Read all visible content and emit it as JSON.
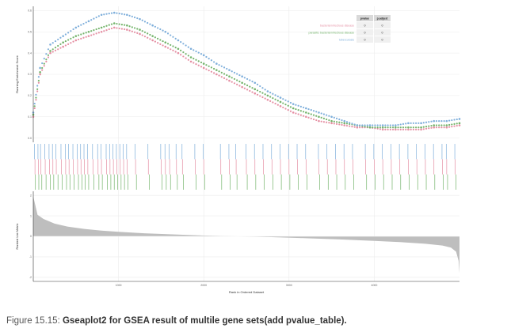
{
  "caption": {
    "prefix": "Figure 15.15: ",
    "title": "Gseaplot2 for GSEA result of multile gene sets(add pvalue_table)."
  },
  "colors": {
    "series": [
      "#E78AC3",
      "#66C2A5",
      "#8DA0CB"
    ],
    "es_series": [
      "#E58FA3",
      "#74B46B",
      "#7FAFDB"
    ],
    "rank_fill": "#BEBEBE",
    "grid": "#EBEBEB",
    "table_header": "#D9D9D9",
    "table_body": "#F0F0F0"
  },
  "chart_data": {
    "type": "scatter",
    "title": "",
    "panels": {
      "es": {
        "ylabel": "Running Enrichment Score",
        "ylim": [
          -0.02,
          0.62
        ],
        "yticks": [
          0.0,
          0.1,
          0.2,
          0.3,
          0.4,
          0.5,
          0.6
        ],
        "ytick_labels": [
          "0.0",
          "0.1",
          "0.2",
          "0.3",
          "0.4",
          "0.5",
          "0.6"
        ],
        "series": [
          {
            "name": "bacterial infectious disease",
            "x": [
              0,
              80,
              200,
              350,
              500,
              650,
              800,
              950,
              1100,
              1250,
              1400,
              1550,
              1700,
              1850,
              2000,
              2150,
              2300,
              2450,
              2600,
              2750,
              2900,
              3050,
              3200,
              3350,
              3500,
              3650,
              3800,
              3950,
              4100,
              4250,
              4400,
              4550,
              4700,
              4850,
              5000
            ],
            "y": [
              0.1,
              0.3,
              0.4,
              0.43,
              0.46,
              0.48,
              0.5,
              0.52,
              0.51,
              0.49,
              0.46,
              0.43,
              0.4,
              0.36,
              0.33,
              0.3,
              0.27,
              0.24,
              0.21,
              0.18,
              0.15,
              0.12,
              0.1,
              0.08,
              0.07,
              0.06,
              0.05,
              0.05,
              0.04,
              0.04,
              0.04,
              0.04,
              0.05,
              0.05,
              0.06
            ]
          },
          {
            "name": "parasitic bacterial infectious disease",
            "x": [
              0,
              80,
              200,
              350,
              500,
              650,
              800,
              950,
              1100,
              1250,
              1400,
              1550,
              1700,
              1850,
              2000,
              2150,
              2300,
              2450,
              2600,
              2750,
              2900,
              3050,
              3200,
              3350,
              3500,
              3650,
              3800,
              3950,
              4100,
              4250,
              4400,
              4550,
              4700,
              4850,
              5000
            ],
            "y": [
              0.11,
              0.31,
              0.41,
              0.45,
              0.48,
              0.5,
              0.52,
              0.54,
              0.53,
              0.51,
              0.48,
              0.45,
              0.42,
              0.38,
              0.35,
              0.32,
              0.29,
              0.26,
              0.23,
              0.2,
              0.17,
              0.14,
              0.12,
              0.1,
              0.08,
              0.07,
              0.06,
              0.05,
              0.05,
              0.05,
              0.05,
              0.05,
              0.06,
              0.06,
              0.07
            ]
          },
          {
            "name": "tuberculosis",
            "x": [
              0,
              80,
              200,
              350,
              500,
              650,
              800,
              950,
              1100,
              1250,
              1400,
              1550,
              1700,
              1850,
              2000,
              2150,
              2300,
              2450,
              2600,
              2750,
              2900,
              3050,
              3200,
              3350,
              3500,
              3650,
              3800,
              3950,
              4100,
              4250,
              4400,
              4550,
              4700,
              4850,
              5000
            ],
            "y": [
              0.12,
              0.33,
              0.44,
              0.48,
              0.52,
              0.55,
              0.58,
              0.59,
              0.58,
              0.56,
              0.53,
              0.5,
              0.46,
              0.42,
              0.39,
              0.35,
              0.32,
              0.29,
              0.26,
              0.22,
              0.19,
              0.16,
              0.14,
              0.12,
              0.1,
              0.08,
              0.06,
              0.06,
              0.06,
              0.06,
              0.07,
              0.07,
              0.08,
              0.08,
              0.09
            ]
          }
        ]
      },
      "hits": {
        "series_hits": [
          [
            20,
            60,
            90,
            140,
            190,
            230,
            270,
            330,
            380,
            420,
            470,
            520,
            560,
            600,
            640,
            700,
            760,
            800,
            860,
            900,
            940,
            980,
            1020,
            1060,
            1100,
            1200,
            1350,
            1500,
            1550,
            1600,
            1680,
            1750,
            1900,
            2000,
            2200,
            2300,
            2380,
            2500,
            2600,
            2700,
            2800,
            2900,
            3000,
            3100,
            3200,
            3350,
            3450,
            3550,
            3650,
            3750,
            3900,
            4000,
            4100,
            4200,
            4300,
            4400,
            4500,
            4600,
            4700,
            4800,
            4850,
            4950
          ],
          [
            25,
            65,
            100,
            150,
            200,
            240,
            290,
            340,
            390,
            430,
            480,
            530,
            570,
            610,
            650,
            710,
            770,
            810,
            870,
            910,
            950,
            990,
            1030,
            1070,
            1110,
            1210,
            1360,
            1510,
            1560,
            1610,
            1690,
            1760,
            1910,
            2010,
            2210,
            2310,
            2390,
            2510,
            2610,
            2710,
            2810,
            2910,
            3010,
            3110,
            3210,
            3360,
            3460,
            3560,
            3660,
            3760,
            3910,
            4010,
            4110,
            4210,
            4310,
            4410,
            4510,
            4610,
            4710,
            4810,
            4860,
            4960
          ],
          [
            15,
            55,
            85,
            135,
            185,
            225,
            265,
            325,
            375,
            415,
            465,
            515,
            555,
            595,
            635,
            695,
            755,
            795,
            855,
            895,
            935,
            975,
            1015,
            1055,
            1095,
            1195,
            1345,
            1495,
            1545,
            1595,
            1675,
            1745,
            1895,
            1995,
            2195,
            2295,
            2375,
            2495,
            2595,
            2695,
            2795,
            2895,
            2995,
            3095,
            3195,
            3345,
            3445,
            3545,
            3645,
            3745,
            3895,
            3995,
            4095,
            4195,
            4295,
            4395,
            4495,
            4595,
            4695,
            4795,
            4845,
            4945
          ]
        ]
      },
      "rank": {
        "ylabel": "Ranked List Metric",
        "ylim": [
          -2.2,
          2.2
        ],
        "yticks": [
          -2,
          -1,
          0,
          1,
          2
        ],
        "ytick_labels": [
          "-2",
          "-1",
          "0",
          "1",
          "2"
        ],
        "x": [
          0,
          50,
          120,
          250,
          400,
          600,
          800,
          1000,
          1300,
          1600,
          2000,
          2400,
          2800,
          3200,
          3600,
          4000,
          4300,
          4600,
          4800,
          4900,
          4960,
          4990,
          5000
        ],
        "y": [
          1.95,
          1.05,
          0.85,
          0.62,
          0.48,
          0.36,
          0.28,
          0.22,
          0.15,
          0.1,
          0.04,
          0.0,
          -0.04,
          -0.09,
          -0.15,
          -0.22,
          -0.28,
          -0.36,
          -0.45,
          -0.55,
          -0.75,
          -1.2,
          -1.8
        ]
      }
    },
    "xlabel": "Rank in Ordered Dataset",
    "xlim": [
      0,
      5000
    ],
    "xticks": [
      1000,
      2000,
      3000,
      4000
    ],
    "xtick_labels": [
      "1000",
      "2000",
      "3000",
      "4000"
    ],
    "legend": "top-right",
    "grid": true,
    "pvalue_table": {
      "columns": [
        "pvalue",
        "p.adjust"
      ],
      "rows": [
        {
          "name": "bacterial infectious disease",
          "pvalue": "0",
          "p.adjust": "0"
        },
        {
          "name": "parasitic bacterial infectious disease",
          "pvalue": "0",
          "p.adjust": "0"
        },
        {
          "name": "tuberculosis",
          "pvalue": "0",
          "p.adjust": "0"
        }
      ]
    }
  }
}
